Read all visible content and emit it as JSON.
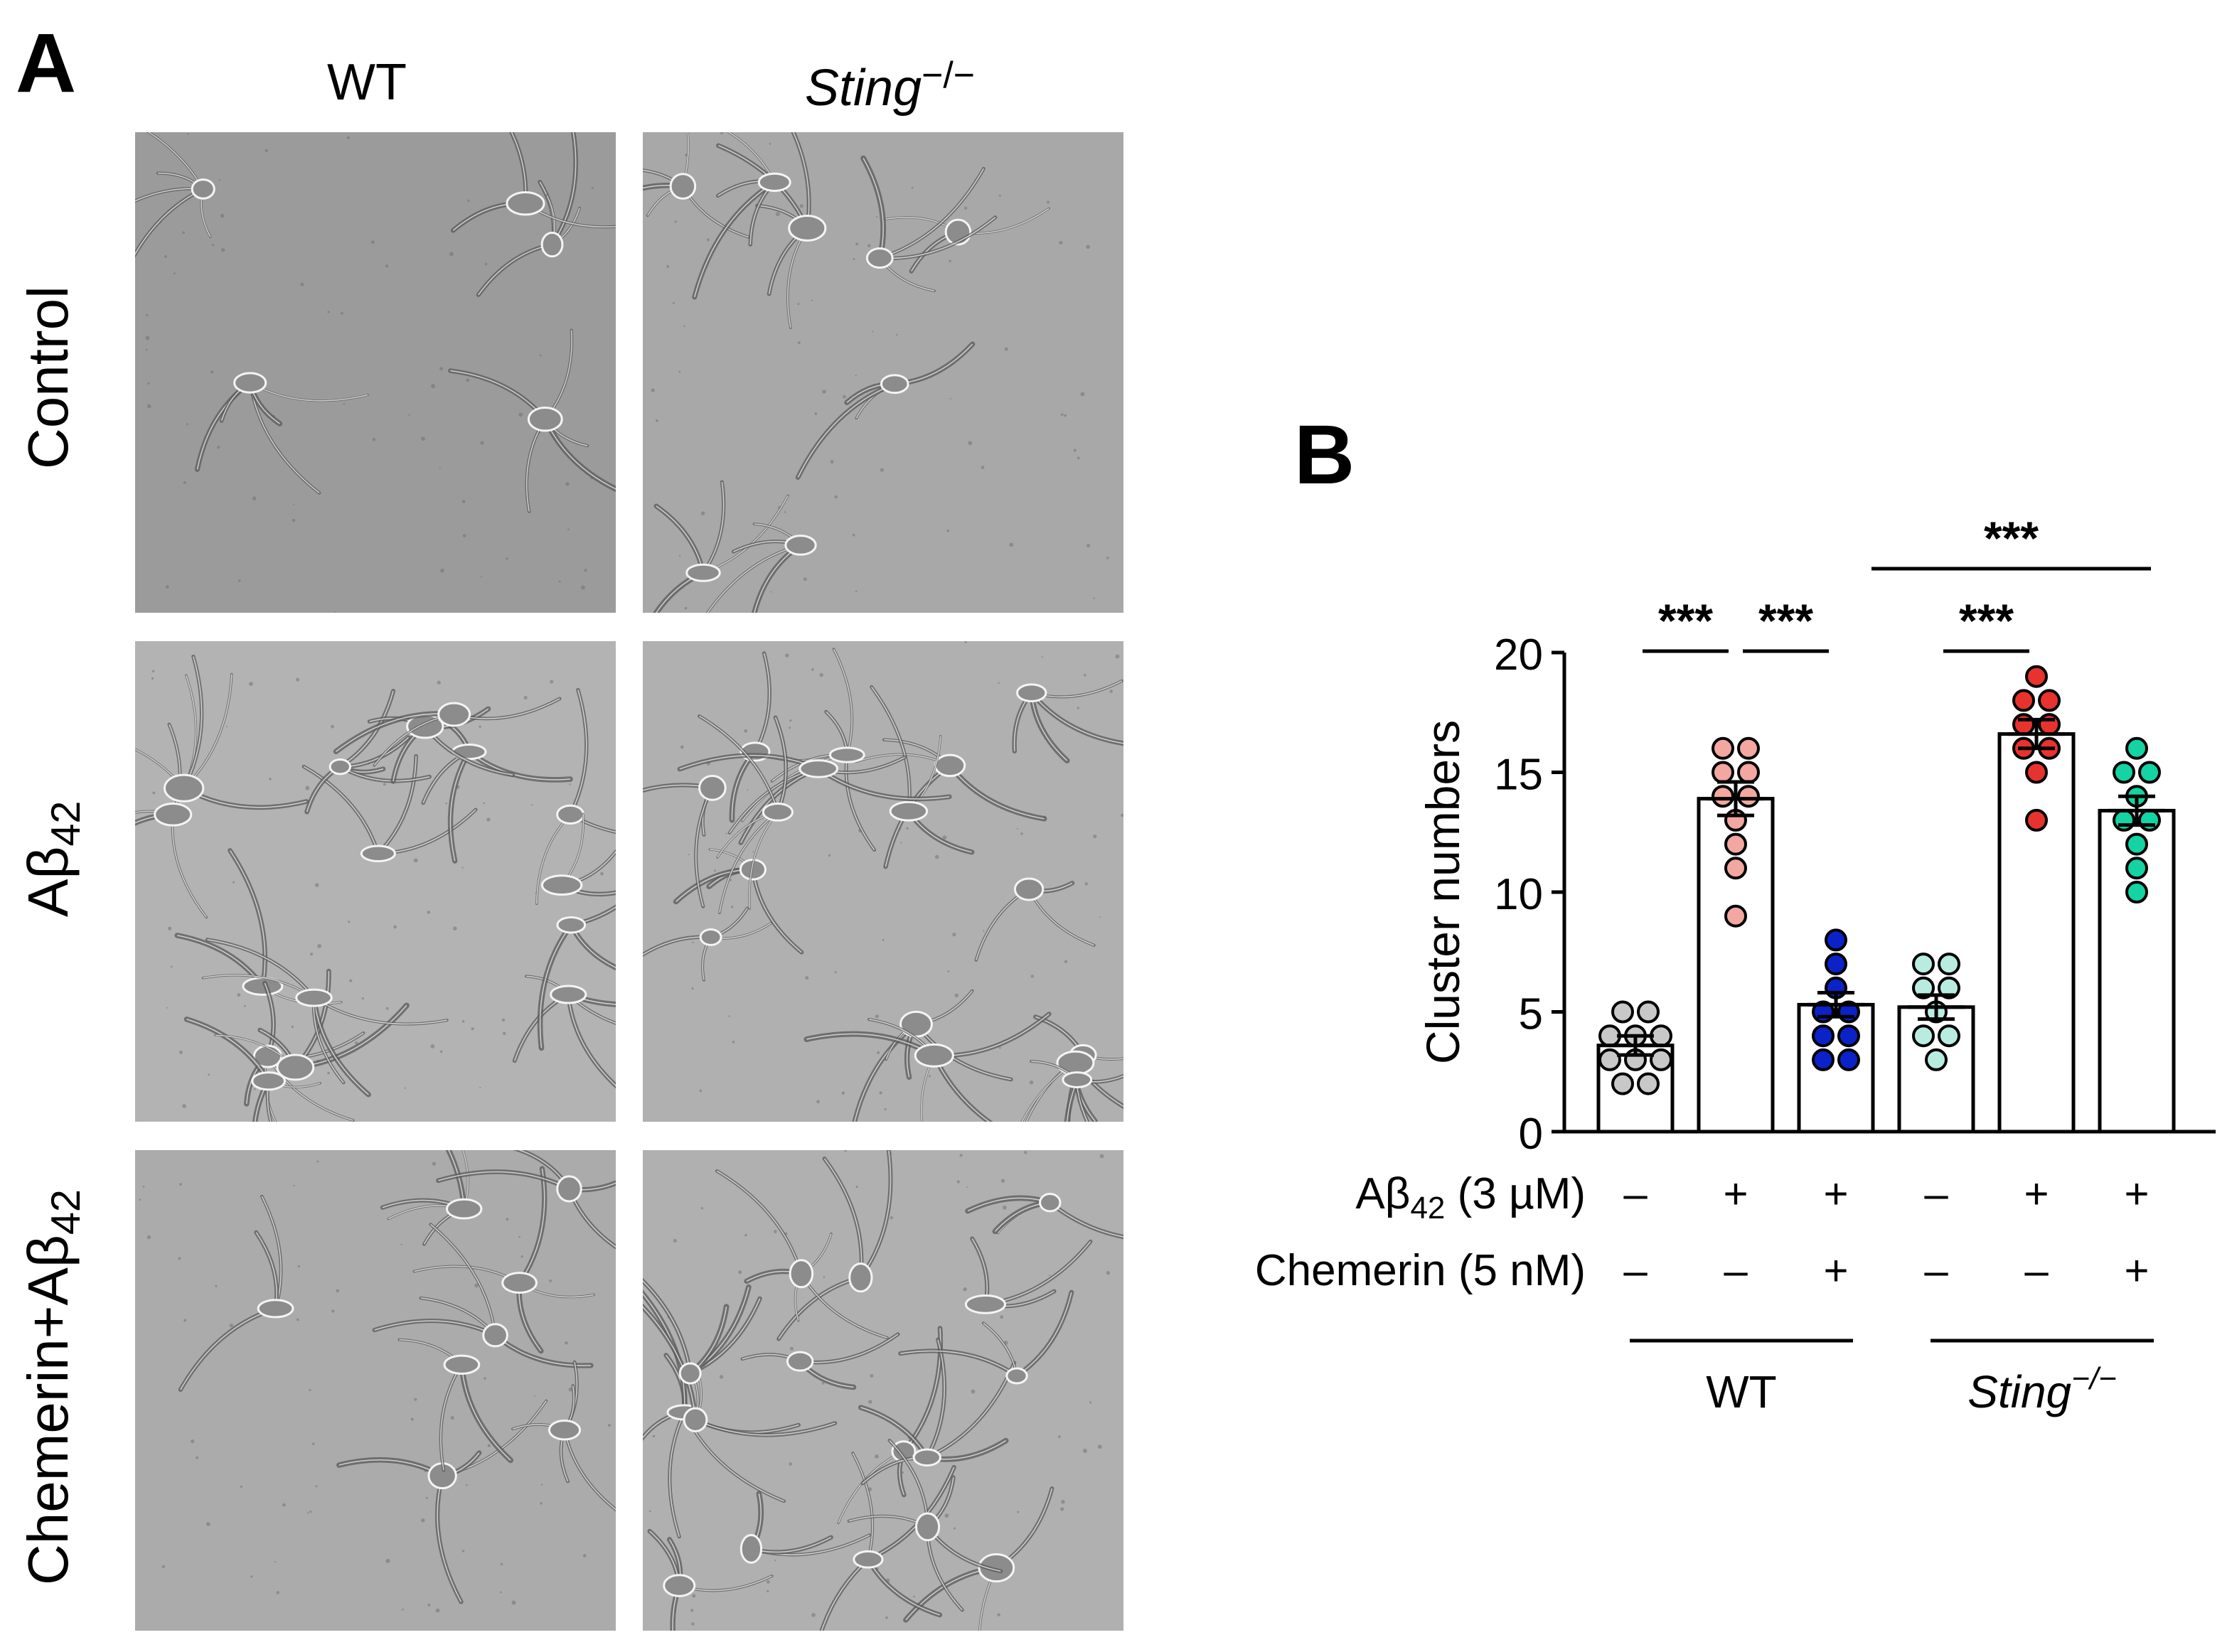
{
  "panel_a": {
    "letter": "A",
    "columns": [
      {
        "label": "WT",
        "italic": false,
        "sup": ""
      },
      {
        "label": "Sting",
        "italic": true,
        "sup": "−/−"
      }
    ],
    "rows": [
      {
        "label": "Control",
        "sub": ""
      },
      {
        "label": "Aβ",
        "sub": "42"
      },
      {
        "label": "Chemerin+Aβ",
        "sub": "42"
      }
    ]
  },
  "chart_data": {
    "type": "bar",
    "letter": "B",
    "ylabel": "Cluster numbers",
    "xlabel": "",
    "ylim": [
      0,
      20
    ],
    "yticks": [
      0,
      5,
      10,
      15,
      20
    ],
    "bar_fill": "#ffffff",
    "bar_edge": "#000000",
    "groups": [
      {
        "mean": 3.6,
        "sem": 0.4,
        "color": "#c8c8c8",
        "points": [
          2,
          2,
          3,
          3,
          3,
          4,
          4,
          4,
          5,
          5
        ]
      },
      {
        "mean": 13.9,
        "sem": 0.7,
        "color": "#f2a7a1",
        "points": [
          9,
          11,
          12,
          13,
          14,
          14,
          15,
          15,
          16,
          16
        ]
      },
      {
        "mean": 5.3,
        "sem": 0.5,
        "color": "#0a22c8",
        "points": [
          3,
          3,
          4,
          4,
          5,
          5,
          6,
          7,
          8
        ]
      },
      {
        "mean": 5.2,
        "sem": 0.5,
        "color": "#b9ece0",
        "points": [
          3,
          4,
          4,
          5,
          6,
          6,
          7,
          7
        ]
      },
      {
        "mean": 16.6,
        "sem": 0.6,
        "color": "#e8322e",
        "points": [
          13,
          15,
          16,
          16,
          17,
          17,
          18,
          18,
          19
        ]
      },
      {
        "mean": 13.4,
        "sem": 0.6,
        "color": "#13d4a2",
        "points": [
          10,
          11,
          12,
          13,
          13,
          14,
          15,
          15,
          16
        ]
      }
    ],
    "condition_rows": [
      {
        "label": "Aβ",
        "sub": "42",
        "suffix": " (3 µM)",
        "values": [
          "–",
          "+",
          "+",
          "–",
          "+",
          "+"
        ]
      },
      {
        "label": "Chemerin (5 nM)",
        "sub": "",
        "suffix": "",
        "values": [
          "–",
          "–",
          "+",
          "–",
          "–",
          "+"
        ]
      }
    ],
    "group_labels": [
      {
        "label": "WT",
        "italic": false,
        "sup": "",
        "from": 0,
        "to": 2
      },
      {
        "label": "Sting",
        "italic": true,
        "sup": "−/−",
        "from": 3,
        "to": 5
      }
    ],
    "significance": [
      {
        "from": 0,
        "to": 1,
        "text": "***",
        "level": 0
      },
      {
        "from": 1,
        "to": 2,
        "text": "***",
        "level": 0
      },
      {
        "from": 3,
        "to": 4,
        "text": "***",
        "level": 0
      },
      {
        "from": 2,
        "to": 5,
        "text": "***",
        "level": 1
      }
    ]
  }
}
